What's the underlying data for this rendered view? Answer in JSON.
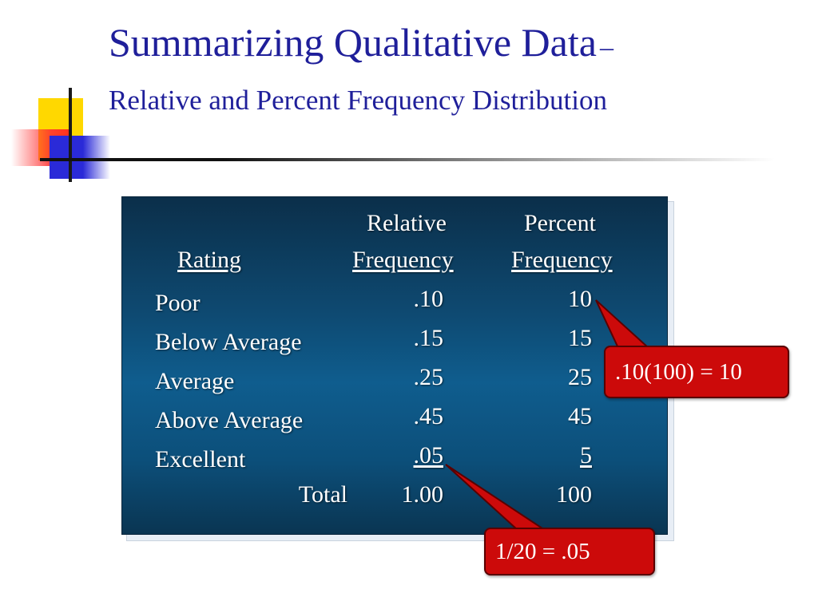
{
  "title": {
    "main": "Summarizing Qualitative Data",
    "dash": "–",
    "subtitle": "Relative and Percent Frequency Distribution"
  },
  "table": {
    "headers": {
      "rating": "Rating",
      "rel_top": "Relative",
      "rel_bottom": "Frequency",
      "pct_top": "Percent",
      "pct_bottom": "Frequency"
    },
    "rows": [
      {
        "rating": "Poor",
        "relative": ".10",
        "percent": "10"
      },
      {
        "rating": "Below Average",
        "relative": ".15",
        "percent": "15"
      },
      {
        "rating": "Average",
        "relative": ".25",
        "percent": "25"
      },
      {
        "rating": "Above Average",
        "relative": ".45",
        "percent": "45"
      },
      {
        "rating": "Excellent",
        "relative": ".05",
        "percent": "5"
      }
    ],
    "total": {
      "label": "Total",
      "relative": "1.00",
      "percent": "100"
    }
  },
  "callouts": {
    "percent_note": ".10(100) = 10",
    "relative_note": "1/20 = .05"
  },
  "colors": {
    "title": "#1f1f9a",
    "panel": "#0e4a72",
    "callout": "#cc0a0a"
  }
}
